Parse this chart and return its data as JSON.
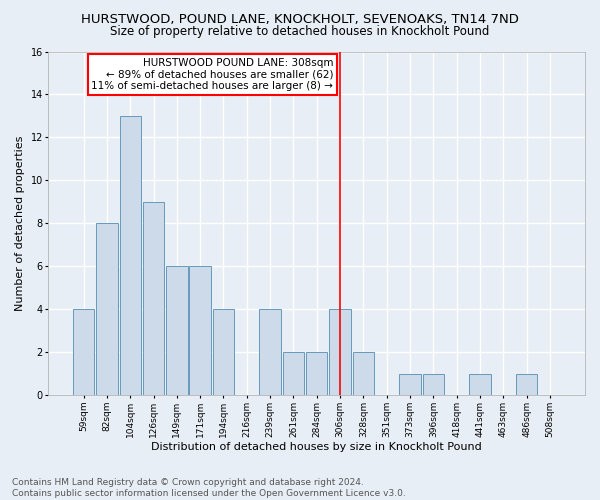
{
  "title": "HURSTWOOD, POUND LANE, KNOCKHOLT, SEVENOAKS, TN14 7ND",
  "subtitle": "Size of property relative to detached houses in Knockholt Pound",
  "xlabel": "Distribution of detached houses by size in Knockholt Pound",
  "ylabel": "Number of detached properties",
  "categories": [
    "59sqm",
    "82sqm",
    "104sqm",
    "126sqm",
    "149sqm",
    "171sqm",
    "194sqm",
    "216sqm",
    "239sqm",
    "261sqm",
    "284sqm",
    "306sqm",
    "328sqm",
    "351sqm",
    "373sqm",
    "396sqm",
    "418sqm",
    "441sqm",
    "463sqm",
    "486sqm",
    "508sqm"
  ],
  "values": [
    4,
    8,
    13,
    9,
    6,
    6,
    4,
    0,
    4,
    2,
    2,
    4,
    2,
    0,
    1,
    1,
    0,
    1,
    0,
    1,
    0
  ],
  "bar_color": "#ccdaea",
  "bar_edge_color": "#6699bb",
  "red_line_index": 11,
  "annotation_line1": "HURSTWOOD POUND LANE: 308sqm",
  "annotation_line2": "← 89% of detached houses are smaller (62)",
  "annotation_line3": "11% of semi-detached houses are larger (8) →",
  "ylim": [
    0,
    16
  ],
  "yticks": [
    0,
    2,
    4,
    6,
    8,
    10,
    12,
    14,
    16
  ],
  "footer_line1": "Contains HM Land Registry data © Crown copyright and database right 2024.",
  "footer_line2": "Contains public sector information licensed under the Open Government Licence v3.0.",
  "background_color": "#e8eef5",
  "plot_background": "#e8eef5",
  "grid_color": "#ffffff",
  "title_fontsize": 9.5,
  "subtitle_fontsize": 8.5,
  "tick_label_fontsize": 6.5,
  "ylabel_fontsize": 8,
  "xlabel_fontsize": 8,
  "annotation_fontsize": 7.5,
  "footer_fontsize": 6.5
}
